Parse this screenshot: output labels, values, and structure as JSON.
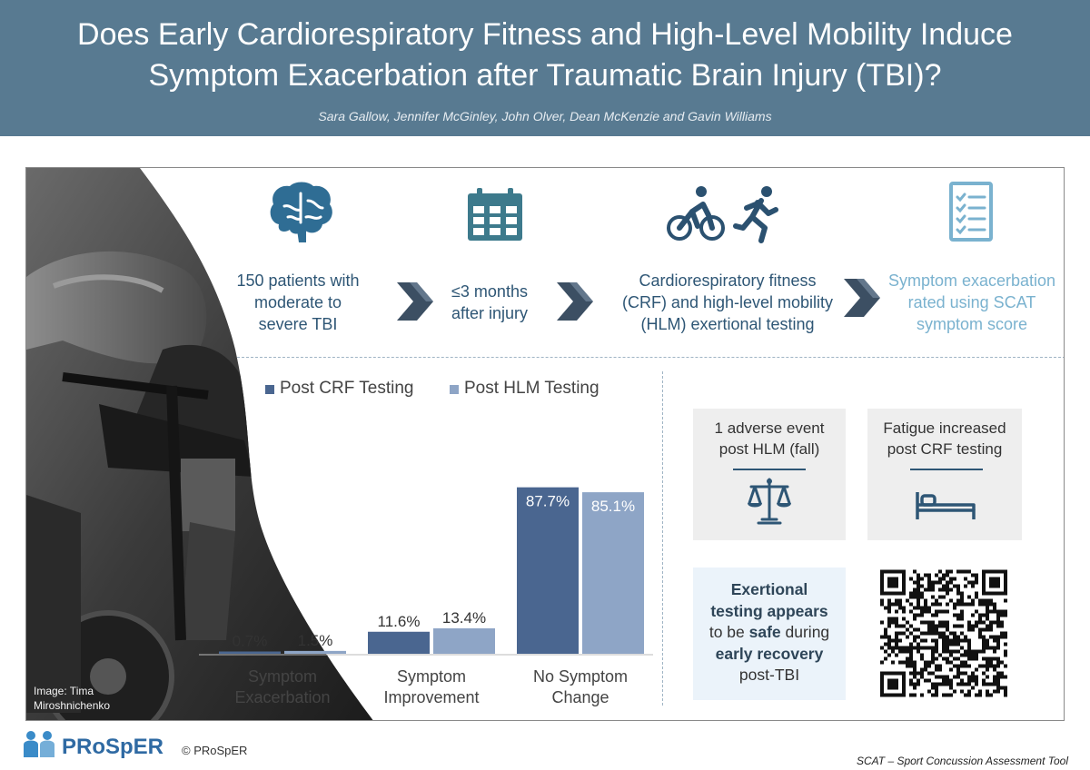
{
  "header": {
    "title_line1": "Does Early Cardiorespiratory Fitness and High-Level Mobility Induce",
    "title_line2": "Symptom Exacerbation after Traumatic Brain Injury (TBI)?",
    "authors": "Sara Gallow, Jennifer McGinley, John Olver, Dean McKenzie and Gavin Williams"
  },
  "colors": {
    "header": "#587a91",
    "crf": "#4a6690",
    "hlm": "#8ea5c6",
    "dark_text": "#2e5675",
    "light_text": "#7ab2cf",
    "icon_blue": "#3d6e8f"
  },
  "steps": [
    {
      "icon": "brain-icon",
      "lines": [
        "150 patients with",
        "moderate to",
        "severe TBI"
      ]
    },
    {
      "icon": "calendar-icon",
      "lines": [
        "≤3 months",
        "after injury"
      ]
    },
    {
      "icon": "cycling-running-icon",
      "lines": [
        "Cardiorespiratory fitness",
        "(CRF) and high-level mobility",
        "(HLM) exertional testing"
      ]
    },
    {
      "icon": "checklist-icon",
      "lines": [
        "Symptom exacerbation",
        "rated using SCAT",
        "symptom score"
      ]
    }
  ],
  "chart_data": {
    "type": "bar",
    "categories": [
      [
        "Symptom",
        "Exacerbation"
      ],
      [
        "Symptom",
        "Improvement"
      ],
      [
        "No Symptom",
        "Change"
      ]
    ],
    "series": [
      {
        "name": "Post CRF Testing",
        "values": [
          0.7,
          11.6,
          87.7
        ],
        "labels": [
          "0.7%",
          "11.6%",
          "87.7%"
        ]
      },
      {
        "name": "Post HLM Testing",
        "values": [
          1.5,
          13.4,
          85.1
        ],
        "labels": [
          "1.5%",
          "13.4%",
          "85.1%"
        ]
      }
    ],
    "ylim": [
      0,
      100
    ],
    "grid": false,
    "legend_position": "top"
  },
  "findings": {
    "adverse_line1": "1 adverse event",
    "adverse_line2": "post HLM (fall)",
    "fatigue_line1": "Fatigue increased",
    "fatigue_line2": "post CRF testing",
    "conclusion": {
      "l1": "Exertional",
      "l2": "testing appears",
      "l3a": "to be ",
      "l3b": "safe",
      "l3c": " during",
      "l4": "early recovery",
      "l5": "post-TBI"
    }
  },
  "image_credit_line1": "Image: Tima",
  "image_credit_line2": "Miroshnichenko",
  "footer": {
    "logo_text": "PRoSpER",
    "copyright": "© PRoSpER",
    "footnote": "SCAT – Sport Concussion Assessment Tool"
  }
}
